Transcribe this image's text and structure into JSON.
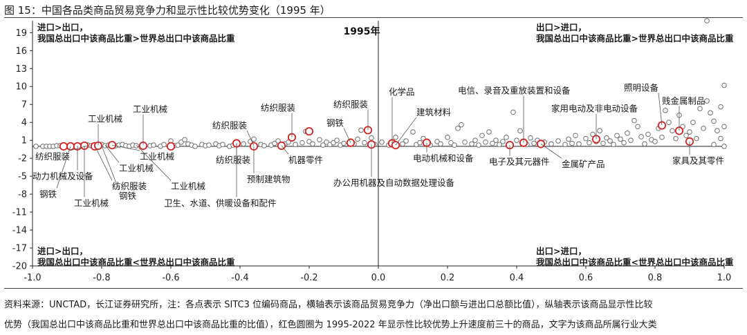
{
  "figure_title": "图 15：中国各品类商品贸易竞争力和显示性比较优势变化（1995 年）",
  "notes": {
    "line1": "资料来源：UNCTAD，长江证券研究所，注：各点表示 SITC3 位编码商品，横轴表示该商品贸易竞争力（净出口额与进出口总额比值），纵轴表示该商品显示性比较",
    "line2": "优势（我国总出口中该商品比重和世界总出口中该商品比重的比值），红色圆圈为 1995-2022 年显示性比较优势上升速度前三十的商品，文字为该商品所属行业大类"
  },
  "colors": {
    "gray_point": "#6e6e6e",
    "highlight": "#d62020",
    "axis": "#222222",
    "grid": "#bfbfbf"
  },
  "chart_data": {
    "type": "scatter",
    "title": "1995年",
    "xlim": [
      -1.0,
      1.0
    ],
    "ylim": [
      -20,
      21
    ],
    "x_ticks": [
      "-1.0",
      "-0.8",
      "-0.6",
      "-0.4",
      "-0.2",
      "0.0",
      "0.2",
      "0.4",
      "0.6",
      "0.8",
      "1.0"
    ],
    "y_ticks": [
      "19",
      "16",
      "13",
      "10",
      "7",
      "4",
      "1",
      "-2",
      "-5",
      "-8",
      "-11",
      "-14",
      "-17",
      "-20"
    ],
    "quadrants": {
      "top_left": [
        "进口>出口，",
        "我国总出口中该商品比重>世界总出口中该商品比重"
      ],
      "top_right": [
        "出口>进口，",
        "我国总出口中该商品比重>世界总出口中该商品比重"
      ],
      "bottom_left": [
        "进口>出口，",
        "我国总出口中该商品比重<世界总出口中该商品比重"
      ],
      "bottom_right": [
        "出口>进口，",
        "我国总出口中该商品比重<世界总出口中该商品比重"
      ]
    },
    "points": [
      [
        -0.99,
        0.0
      ],
      [
        -0.97,
        0.0
      ],
      [
        -0.96,
        0.0
      ],
      [
        -0.95,
        0.0
      ],
      [
        -0.94,
        0.0
      ],
      [
        -0.93,
        0.1
      ],
      [
        -0.92,
        0.1
      ],
      [
        -0.9,
        0.0
      ],
      [
        -0.89,
        0.1
      ],
      [
        -0.88,
        0.0
      ],
      [
        -0.87,
        0.1
      ],
      [
        -0.86,
        0.1
      ],
      [
        -0.85,
        0.0
      ],
      [
        -0.84,
        0.2
      ],
      [
        -0.83,
        0.1
      ],
      [
        -0.82,
        0.0
      ],
      [
        -0.81,
        0.1
      ],
      [
        -0.8,
        0.3
      ],
      [
        -0.79,
        0.1
      ],
      [
        -0.78,
        0.2
      ],
      [
        -0.77,
        0.0
      ],
      [
        -0.76,
        0.1
      ],
      [
        -0.75,
        0.2
      ],
      [
        -0.74,
        0.3
      ],
      [
        -0.73,
        0.1
      ],
      [
        -0.72,
        0.0
      ],
      [
        -0.71,
        0.2
      ],
      [
        -0.7,
        0.1
      ],
      [
        -0.68,
        0.3
      ],
      [
        -0.66,
        0.1
      ],
      [
        -0.65,
        0.2
      ],
      [
        -0.63,
        0.0
      ],
      [
        -0.62,
        0.3
      ],
      [
        -0.6,
        0.9
      ],
      [
        -0.59,
        0.1
      ],
      [
        -0.58,
        0.2
      ],
      [
        -0.57,
        0.7
      ],
      [
        -0.56,
        1.1
      ],
      [
        -0.55,
        0.4
      ],
      [
        -0.54,
        0.2
      ],
      [
        -0.53,
        0.0
      ],
      [
        -0.51,
        0.3
      ],
      [
        -0.5,
        0.1
      ],
      [
        -0.49,
        0.2
      ],
      [
        -0.47,
        0.4
      ],
      [
        -0.46,
        0.1
      ],
      [
        -0.45,
        0.3
      ],
      [
        -0.43,
        0.0
      ],
      [
        -0.42,
        0.2
      ],
      [
        -0.41,
        0.6
      ],
      [
        -0.39,
        0.4
      ],
      [
        -0.37,
        0.8
      ],
      [
        -0.36,
        1.2
      ],
      [
        -0.34,
        0.3
      ],
      [
        -0.33,
        0.1
      ],
      [
        -0.31,
        0.2
      ],
      [
        -0.3,
        0.5
      ],
      [
        -0.29,
        0.9
      ],
      [
        -0.27,
        0.4
      ],
      [
        -0.26,
        0.7
      ],
      [
        -0.25,
        1.5
      ],
      [
        -0.24,
        0.3
      ],
      [
        -0.22,
        0.6
      ],
      [
        -0.21,
        2.5
      ],
      [
        -0.2,
        0.8
      ],
      [
        -0.19,
        0.4
      ],
      [
        -0.17,
        1.1
      ],
      [
        -0.16,
        0.2
      ],
      [
        -0.15,
        0.7
      ],
      [
        -0.14,
        0.3
      ],
      [
        -0.13,
        0.6
      ],
      [
        -0.12,
        1.0
      ],
      [
        -0.11,
        0.2
      ],
      [
        -0.1,
        0.5
      ],
      [
        -0.08,
        0.9
      ],
      [
        -0.07,
        0.4
      ],
      [
        -0.06,
        1.2
      ],
      [
        -0.05,
        2.7
      ],
      [
        -0.04,
        0.6
      ],
      [
        -0.02,
        1.4
      ],
      [
        -0.01,
        0.3
      ],
      [
        0.01,
        0.7
      ],
      [
        0.03,
        0.2
      ],
      [
        0.05,
        1.5
      ],
      [
        0.07,
        0.4
      ],
      [
        0.08,
        0.9
      ],
      [
        0.1,
        2.4
      ],
      [
        0.11,
        0.3
      ],
      [
        0.12,
        0.6
      ],
      [
        0.13,
        1.3
      ],
      [
        0.15,
        0.2
      ],
      [
        0.17,
        0.8
      ],
      [
        0.18,
        0.4
      ],
      [
        0.2,
        1.5
      ],
      [
        0.21,
        0.6
      ],
      [
        0.22,
        0.2
      ],
      [
        0.23,
        3.0
      ],
      [
        0.24,
        3.6
      ],
      [
        0.25,
        0.7
      ],
      [
        0.27,
        0.4
      ],
      [
        0.28,
        1.0
      ],
      [
        0.29,
        0.2
      ],
      [
        0.3,
        1.8
      ],
      [
        0.31,
        0.7
      ],
      [
        0.32,
        2.4
      ],
      [
        0.33,
        0.5
      ],
      [
        0.34,
        1.0
      ],
      [
        0.35,
        0.3
      ],
      [
        0.36,
        0.8
      ],
      [
        0.37,
        1.5
      ],
      [
        0.38,
        0.3
      ],
      [
        0.39,
        5.7
      ],
      [
        0.4,
        1.0
      ],
      [
        0.41,
        2.6
      ],
      [
        0.42,
        0.7
      ],
      [
        0.43,
        0.3
      ],
      [
        0.44,
        1.4
      ],
      [
        0.45,
        0.5
      ],
      [
        0.46,
        1.0
      ],
      [
        0.47,
        0.3
      ],
      [
        0.48,
        0.7
      ],
      [
        0.5,
        0.4
      ],
      [
        0.52,
        0.9
      ],
      [
        0.54,
        0.3
      ],
      [
        0.55,
        1.2
      ],
      [
        0.56,
        0.5
      ],
      [
        0.57,
        1.8
      ],
      [
        0.58,
        0.4
      ],
      [
        0.6,
        1.3
      ],
      [
        0.61,
        0.6
      ],
      [
        0.62,
        2.0
      ],
      [
        0.63,
        0.8
      ],
      [
        0.64,
        2.6
      ],
      [
        0.65,
        0.5
      ],
      [
        0.66,
        1.4
      ],
      [
        0.67,
        0.9
      ],
      [
        0.68,
        0.3
      ],
      [
        0.69,
        1.8
      ],
      [
        0.7,
        1.2
      ],
      [
        0.71,
        0.6
      ],
      [
        0.72,
        2.2
      ],
      [
        0.73,
        1.0
      ],
      [
        0.74,
        4.3
      ],
      [
        0.75,
        3.3
      ],
      [
        0.76,
        1.6
      ],
      [
        0.77,
        0.4
      ],
      [
        0.78,
        2.0
      ],
      [
        0.79,
        1.1
      ],
      [
        0.8,
        0.8
      ],
      [
        0.81,
        3.0
      ],
      [
        0.82,
        1.5
      ],
      [
        0.83,
        6.0
      ],
      [
        0.84,
        4.0
      ],
      [
        0.85,
        2.6
      ],
      [
        0.86,
        1.3
      ],
      [
        0.87,
        5.2
      ],
      [
        0.88,
        3.3
      ],
      [
        0.89,
        1.8
      ],
      [
        0.9,
        2.4
      ],
      [
        0.91,
        4.0
      ],
      [
        0.92,
        1.3
      ],
      [
        0.93,
        6.3
      ],
      [
        0.94,
        3.0
      ],
      [
        0.95,
        7.6
      ],
      [
        0.96,
        5.6
      ],
      [
        0.97,
        4.2
      ],
      [
        0.98,
        2.6
      ],
      [
        0.99,
        6.6
      ],
      [
        0.95,
        21.0
      ],
      [
        1.0,
        10.2
      ],
      [
        1.0,
        3.3
      ],
      [
        0.99,
        1.3
      ],
      [
        0.97,
        0.3
      ],
      [
        1.0,
        0.0
      ]
    ],
    "highlighted": [
      [
        -0.91,
        0.0
      ],
      [
        -0.89,
        0.0
      ],
      [
        -0.87,
        0.0
      ],
      [
        -0.85,
        0.1
      ],
      [
        -0.82,
        0.0
      ],
      [
        -0.81,
        0.1
      ],
      [
        -0.77,
        0.2
      ],
      [
        -0.68,
        0.1
      ],
      [
        -0.6,
        0.0
      ],
      [
        -0.41,
        0.5
      ],
      [
        -0.36,
        0.0
      ],
      [
        -0.28,
        0.1
      ],
      [
        -0.25,
        1.5
      ],
      [
        -0.2,
        2.5
      ],
      [
        -0.08,
        0.6
      ],
      [
        -0.03,
        2.7
      ],
      [
        -0.02,
        0.3
      ],
      [
        0.04,
        0.5
      ],
      [
        0.05,
        0.2
      ],
      [
        0.14,
        0.6
      ],
      [
        0.38,
        0.2
      ],
      [
        0.42,
        0.6
      ],
      [
        0.47,
        0.4
      ],
      [
        0.63,
        1.2
      ],
      [
        0.82,
        3.5
      ],
      [
        0.87,
        2.6
      ],
      [
        0.9,
        0.8
      ]
    ],
    "labels": [
      {
        "text": "纺织服装",
        "lx": -0.992,
        "ly": -2.2,
        "px": -0.84,
        "py": 0.1
      },
      {
        "text": "工业机械",
        "lx": -0.84,
        "ly": 4.1,
        "px": -0.81,
        "py": 0.2
      },
      {
        "text": "工业机械",
        "lx": -0.71,
        "ly": 5.7,
        "px": -0.68,
        "py": 0.2
      },
      {
        "text": "工业机械",
        "lx": -0.69,
        "ly": -2.2,
        "px": -0.77,
        "py": 0.2
      },
      {
        "text": "工业机械",
        "lx": -0.75,
        "ly": -4.2,
        "px": -0.79,
        "py": 0.2
      },
      {
        "text": "动力机械及设备",
        "lx": -1.0,
        "ly": -5.5,
        "px": -0.87,
        "py": 0.1
      },
      {
        "text": "纺织服装",
        "lx": -0.77,
        "ly": -7.2,
        "px": -0.82,
        "py": 0.1
      },
      {
        "text": "钢铁",
        "lx": -0.98,
        "ly": -8.5,
        "px": -0.89,
        "py": 0.0
      },
      {
        "text": "钢铁",
        "lx": -0.75,
        "ly": -8.8,
        "px": -0.8,
        "py": 0.1
      },
      {
        "text": "工业机械",
        "lx": -0.88,
        "ly": -10.0,
        "px": -0.85,
        "py": 0.1
      },
      {
        "text": "工业机械",
        "lx": -0.6,
        "ly": -7.2,
        "px": -0.7,
        "py": 0.2
      },
      {
        "text": "卫生、水道、供暖设备和配件",
        "lx": -0.62,
        "ly": -10.0,
        "px": -0.41,
        "py": 0.5
      },
      {
        "text": "纺织服装",
        "lx": -0.48,
        "ly": 3.0,
        "px": -0.36,
        "py": 0.1
      },
      {
        "text": "纺织服装",
        "lx": -0.47,
        "ly": -2.8,
        "px": -0.41,
        "py": 0.5
      },
      {
        "text": "预制建筑物",
        "lx": -0.38,
        "ly": -6.0,
        "px": -0.36,
        "py": 0.0
      },
      {
        "text": "纺织服装",
        "lx": -0.34,
        "ly": 5.9,
        "px": -0.25,
        "py": 1.5
      },
      {
        "text": "机器零件",
        "lx": -0.26,
        "ly": -2.8,
        "px": -0.28,
        "py": 0.1
      },
      {
        "text": "纺织服装",
        "lx": -0.13,
        "ly": 6.5,
        "px": -0.03,
        "py": 2.7
      },
      {
        "text": "钢铁",
        "lx": -0.15,
        "ly": 3.4,
        "px": -0.08,
        "py": 0.6
      },
      {
        "text": "化学品",
        "lx": 0.03,
        "ly": 8.6,
        "px": 0.04,
        "py": 0.5
      },
      {
        "text": "建筑材料",
        "lx": 0.11,
        "ly": 5.2,
        "px": 0.05,
        "py": 0.2
      },
      {
        "text": "办公用机器及自动数据处理设备",
        "lx": -0.13,
        "ly": -6.6,
        "px": -0.02,
        "py": 0.3
      },
      {
        "text": "电动机械和设备",
        "lx": 0.1,
        "ly": -2.5,
        "px": 0.14,
        "py": 0.6
      },
      {
        "text": "电信、录音及重放装置和设备",
        "lx": 0.23,
        "ly": 8.8,
        "px": 0.42,
        "py": 0.6
      },
      {
        "text": "电子及其元器件",
        "lx": 0.32,
        "ly": -3.1,
        "px": 0.38,
        "py": 0.2
      },
      {
        "text": "金属矿产品",
        "lx": 0.53,
        "ly": -3.5,
        "px": 0.47,
        "py": 0.4
      },
      {
        "text": "家用电动及非电动设备",
        "lx": 0.5,
        "ly": 5.8,
        "px": 0.63,
        "py": 1.2
      },
      {
        "text": "照明设备",
        "lx": 0.71,
        "ly": 9.3,
        "px": 0.82,
        "py": 3.5
      },
      {
        "text": "贱金属制品",
        "lx": 0.82,
        "ly": 7.1,
        "px": 0.87,
        "py": 2.6
      },
      {
        "text": "家具及其零件",
        "lx": 0.85,
        "ly": -2.9,
        "px": 0.9,
        "py": 0.8
      }
    ]
  }
}
